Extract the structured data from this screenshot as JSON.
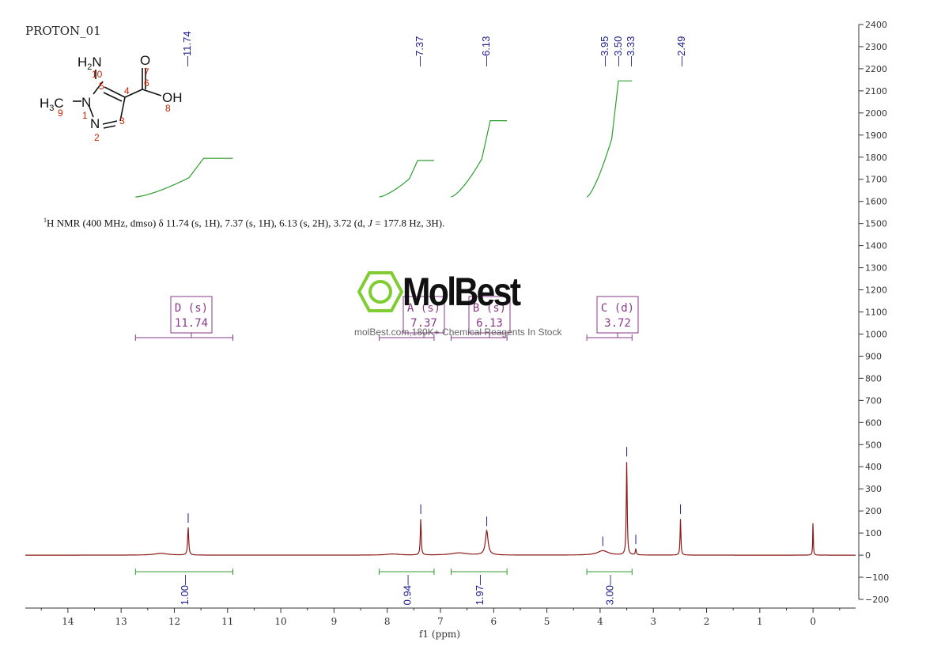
{
  "page": {
    "title": "PROTON_01",
    "description_prefix": "H NMR (400 MHz, dmso) δ 11.74 (s, 1H), 7.37 (s, 1H), 6.13 (s, 2H), 3.72 (d, ",
    "description_J": "J",
    "description_suffix": " = 177.8 Hz, 3H).",
    "description_sup": "1",
    "watermark_brand": "MolBest",
    "watermark_tagline": "molBest.com,180K+ Chemical Reagents In Stock"
  },
  "molecule": {
    "labels": {
      "nh2": "H2N",
      "num10": "10",
      "num5": "5",
      "num4": "4",
      "num3": "3",
      "num2": "2",
      "num1": "1",
      "num9": "9",
      "num6": "6",
      "num7": "7",
      "num8": "8",
      "o": "O",
      "oh": "OH",
      "n1": "N",
      "n2": "N",
      "h3c": "H3C"
    }
  },
  "colors": {
    "spectrum": "#8b1a1a",
    "integral": "#2e9e2e",
    "peak_label": "#1a1a8c",
    "multiplet_box": "#8b3a8b",
    "axis": "#333333",
    "atom_number": "#cc2200",
    "watermark": "#7fcc33"
  },
  "chart_data": {
    "type": "line",
    "xlabel": "f1 (ppm)",
    "xlim": [
      14.8,
      -0.8
    ],
    "ylim": [
      -200,
      2400
    ],
    "x_ticks": [
      14,
      13,
      12,
      11,
      10,
      9,
      8,
      7,
      6,
      5,
      4,
      3,
      2,
      1,
      0
    ],
    "y_ticks": [
      -200,
      -100,
      0,
      100,
      200,
      300,
      400,
      500,
      600,
      700,
      800,
      900,
      1000,
      1100,
      1200,
      1300,
      1400,
      1500,
      1600,
      1700,
      1800,
      1900,
      2000,
      2100,
      2200,
      2300,
      2400
    ],
    "y_tick_labels": [
      "−200",
      "−100",
      "0",
      "100",
      "200",
      "300",
      "400",
      "500",
      "600",
      "700",
      "800",
      "900",
      "1000",
      "1100",
      "1200",
      "1300",
      "1400",
      "1500",
      "1600",
      "1700",
      "1800",
      "1900",
      "2000",
      "2100",
      "2200",
      "2300",
      "2400"
    ],
    "peaks": [
      {
        "ppm": 11.74,
        "height": 125,
        "width": 0.012
      },
      {
        "ppm": 7.37,
        "height": 165,
        "width": 0.01
      },
      {
        "ppm": 6.13,
        "height": 110,
        "width": 0.03
      },
      {
        "ppm": 3.95,
        "height": 20,
        "width": 0.12
      },
      {
        "ppm": 3.5,
        "height": 425,
        "width": 0.01
      },
      {
        "ppm": 3.33,
        "height": 28,
        "width": 0.01
      },
      {
        "ppm": 2.49,
        "height": 165,
        "width": 0.009
      },
      {
        "ppm": 0.0,
        "height": 165,
        "width": 0.006
      },
      {
        "ppm": 12.25,
        "height": 8,
        "width": 0.15
      },
      {
        "ppm": 6.65,
        "height": 10,
        "width": 0.18
      },
      {
        "ppm": 7.9,
        "height": 5,
        "width": 0.15
      }
    ],
    "peak_labels": [
      {
        "ppm": 11.74,
        "label": "11.74"
      },
      {
        "ppm": 7.37,
        "label": "7.37"
      },
      {
        "ppm": 6.13,
        "label": "6.13"
      },
      {
        "ppm": 3.95,
        "label": "3.95"
      },
      {
        "ppm": 3.5,
        "label": "3.50"
      },
      {
        "ppm": 3.33,
        "label": "3.33"
      },
      {
        "ppm": 2.49,
        "label": "2.49"
      }
    ],
    "multiplets": [
      {
        "letter": "D (s)",
        "shift": "11.74",
        "range": [
          12.73,
          10.9
        ],
        "integral": "1.00"
      },
      {
        "letter": "A (s)",
        "shift": "7.37",
        "range": [
          8.15,
          7.12
        ],
        "integral": "0.94"
      },
      {
        "letter": "B (s)",
        "shift": "6.13",
        "range": [
          6.8,
          5.75
        ],
        "integral": "1.97"
      },
      {
        "letter": "C (d)",
        "shift": "3.72",
        "range": [
          4.25,
          3.4
        ],
        "integral": "3.00"
      }
    ],
    "integral_curves": [
      {
        "range": [
          12.73,
          10.9
        ],
        "start": 1620,
        "end": 1795
      },
      {
        "range": [
          8.15,
          7.12
        ],
        "start": 1620,
        "end": 1785
      },
      {
        "range": [
          6.8,
          5.75
        ],
        "start": 1620,
        "end": 1965
      },
      {
        "range": [
          4.25,
          3.4
        ],
        "start": 1620,
        "end": 2145
      }
    ]
  }
}
